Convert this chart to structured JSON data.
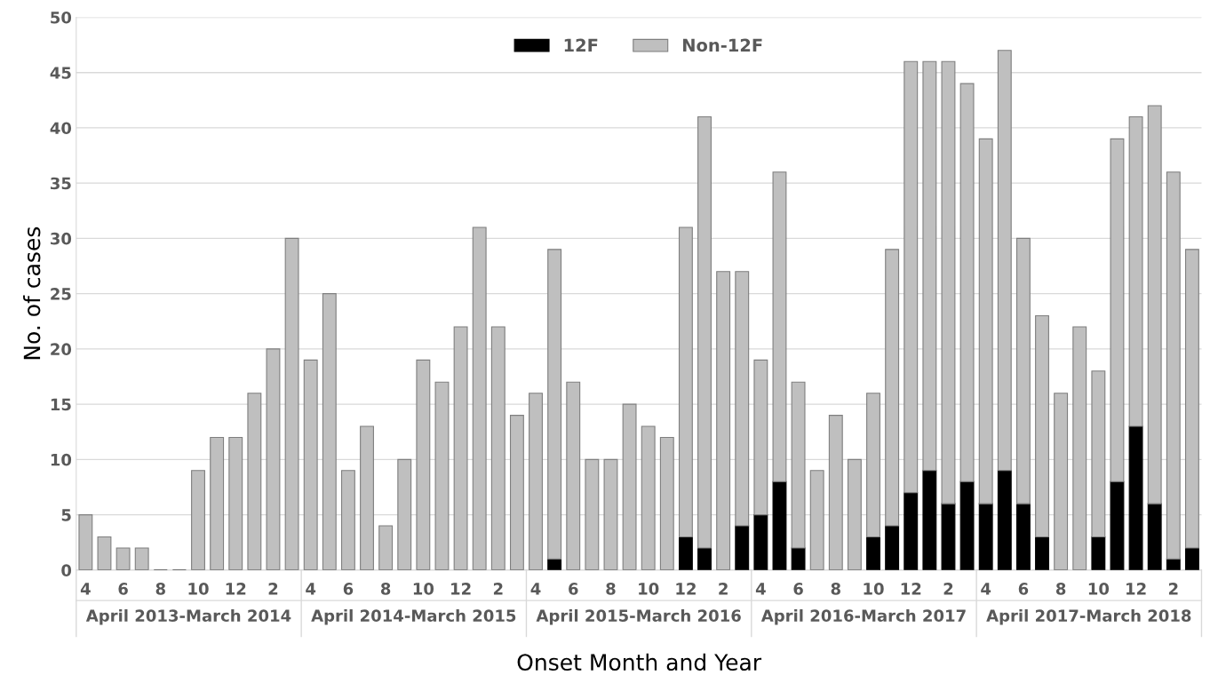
{
  "chart_data": {
    "type": "bar",
    "stacked": true,
    "xlabel": "Onset Month and Year",
    "ylabel": "No. of cases",
    "categories": [
      "4",
      null,
      "6",
      null,
      "8",
      null,
      "10",
      null,
      "12",
      null,
      "2",
      null,
      "4",
      null,
      "6",
      null,
      "8",
      null,
      "10",
      null,
      "12",
      null,
      "2",
      null,
      "4",
      null,
      "6",
      null,
      "8",
      null,
      "10",
      null,
      "12",
      null,
      "2",
      null,
      "4",
      null,
      "6",
      null,
      "8",
      null,
      "10",
      null,
      "12",
      null,
      "2",
      null,
      "4",
      null,
      "6",
      null,
      "8",
      null,
      "10",
      null,
      "12",
      null,
      "2",
      null
    ],
    "series": [
      {
        "name": "12F",
        "color": "#000000",
        "values": [
          0,
          0,
          0,
          0,
          0,
          0,
          0,
          0,
          0,
          0,
          0,
          0,
          0,
          0,
          0,
          0,
          0,
          0,
          0,
          0,
          0,
          0,
          0,
          0,
          0,
          1,
          0,
          0,
          0,
          0,
          0,
          0,
          3,
          2,
          0,
          4,
          5,
          8,
          2,
          0,
          0,
          0,
          3,
          4,
          7,
          9,
          6,
          8,
          6,
          9,
          6,
          3,
          0,
          0,
          3,
          8,
          13,
          6,
          1,
          2
        ]
      },
      {
        "name": "Non-12F",
        "color": "#bfbfbf",
        "values": [
          5,
          3,
          2,
          2,
          0,
          0,
          9,
          12,
          12,
          16,
          20,
          30,
          19,
          25,
          9,
          13,
          4,
          10,
          19,
          17,
          22,
          31,
          22,
          14,
          16,
          28,
          17,
          10,
          10,
          15,
          13,
          12,
          28,
          39,
          27,
          23,
          14,
          28,
          15,
          9,
          14,
          10,
          13,
          25,
          39,
          37,
          40,
          36,
          33,
          38,
          24,
          20,
          16,
          22,
          15,
          31,
          28,
          36,
          35,
          27
        ]
      }
    ],
    "annotations": [
      "April 2013-March 2014",
      "April 2014-March 2015",
      "April 2015-March 2016",
      "April 2016-March 2017",
      "April 2017-March 2018"
    ],
    "ylim": [
      0,
      50
    ],
    "yticks": [
      0,
      5,
      10,
      15,
      20,
      25,
      30,
      35,
      40,
      45,
      50
    ],
    "grid": "y",
    "legend": "top"
  }
}
